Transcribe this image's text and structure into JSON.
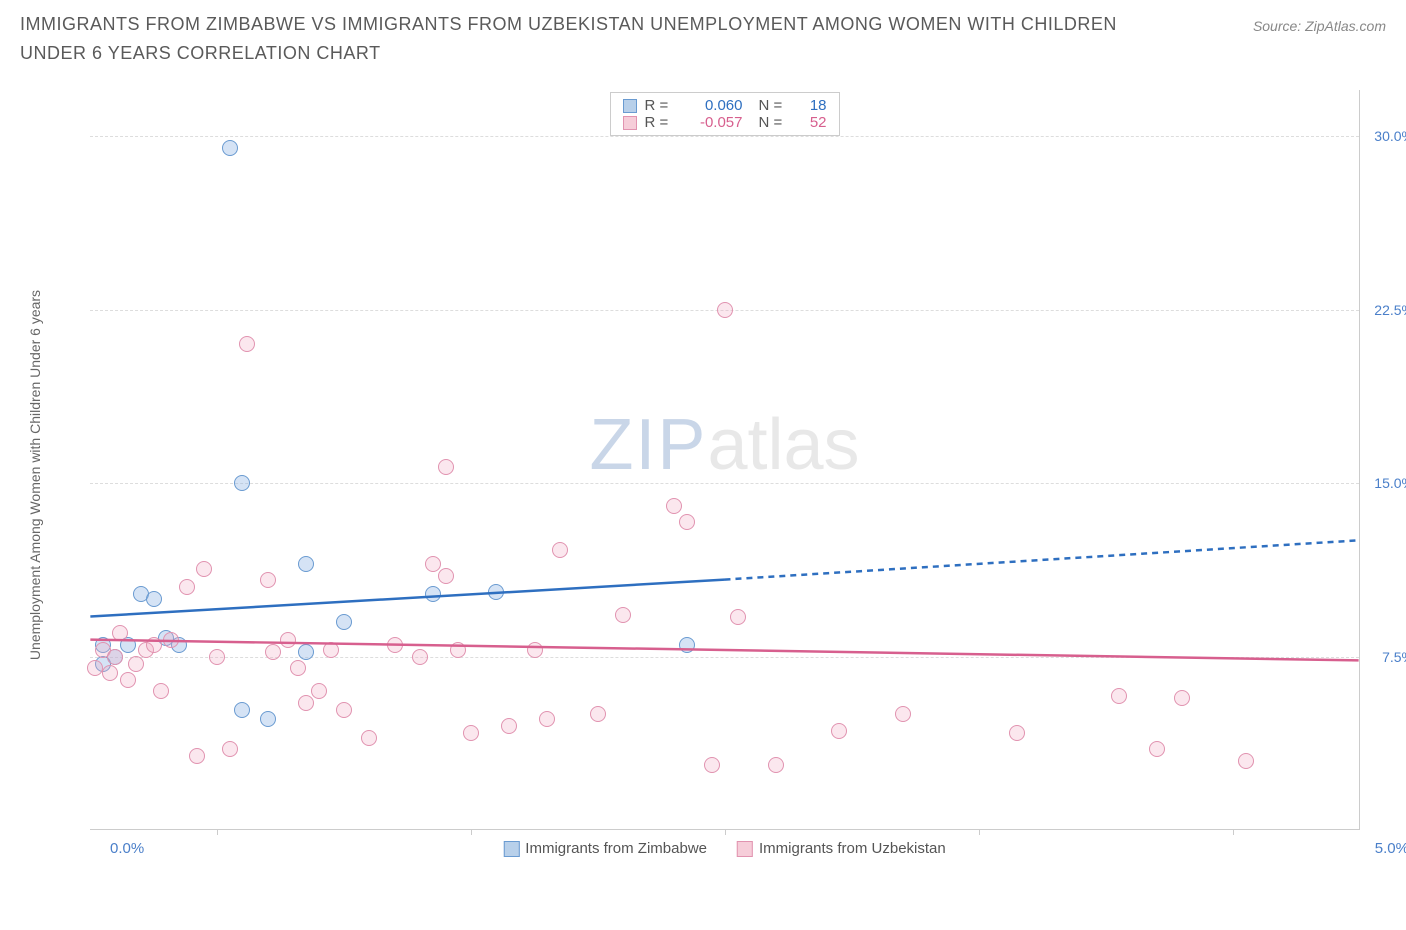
{
  "title": "IMMIGRANTS FROM ZIMBABWE VS IMMIGRANTS FROM UZBEKISTAN UNEMPLOYMENT AMONG WOMEN WITH CHILDREN UNDER 6 YEARS CORRELATION CHART",
  "source": "Source: ZipAtlas.com",
  "y_axis_label": "Unemployment Among Women with Children Under 6 years",
  "x_axis_min_label": "0.0%",
  "x_axis_max_label": "5.0%",
  "chart": {
    "type": "scatter",
    "xlim": [
      0.0,
      5.0
    ],
    "ylim": [
      0.0,
      32.0
    ],
    "y_ticks": [
      7.5,
      15.0,
      22.5,
      30.0
    ],
    "y_tick_labels": [
      "7.5%",
      "15.0%",
      "22.5%",
      "30.0%"
    ],
    "x_ticks": [
      0.5,
      1.5,
      2.5,
      3.5,
      4.5
    ],
    "y_tick_color": "#4a7fc9",
    "grid_color": "#dddddd",
    "background_color": "#ffffff",
    "border_color": "#cccccc",
    "marker_radius": 8,
    "marker_stroke_width": 1.2,
    "line_width": 2.5,
    "dash_pattern": "6,5"
  },
  "series": [
    {
      "name": "Immigrants from Zimbabwe",
      "color_fill": "rgba(135,176,225,0.35)",
      "color_stroke": "#6a9bd1",
      "line_color": "#2e6fc0",
      "swatch_fill": "#b8d0ea",
      "swatch_border": "#6a9bd1",
      "R": "0.060",
      "N": "18",
      "trend": {
        "x1": 0.0,
        "y1": 9.2,
        "x2": 2.5,
        "y2": 10.8,
        "x2_ext": 5.0,
        "y2_ext": 12.5
      },
      "points": [
        {
          "x": 0.05,
          "y": 8.0
        },
        {
          "x": 0.1,
          "y": 7.5
        },
        {
          "x": 0.15,
          "y": 8.0
        },
        {
          "x": 0.2,
          "y": 10.2
        },
        {
          "x": 0.25,
          "y": 10.0
        },
        {
          "x": 0.3,
          "y": 8.3
        },
        {
          "x": 0.35,
          "y": 8.0
        },
        {
          "x": 0.55,
          "y": 29.5
        },
        {
          "x": 0.6,
          "y": 15.0
        },
        {
          "x": 0.6,
          "y": 5.2
        },
        {
          "x": 0.7,
          "y": 4.8
        },
        {
          "x": 0.85,
          "y": 11.5
        },
        {
          "x": 0.85,
          "y": 7.7
        },
        {
          "x": 1.0,
          "y": 9.0
        },
        {
          "x": 1.35,
          "y": 10.2
        },
        {
          "x": 1.6,
          "y": 10.3
        },
        {
          "x": 2.35,
          "y": 8.0
        },
        {
          "x": 0.05,
          "y": 7.2
        }
      ]
    },
    {
      "name": "Immigrants from Uzbekistan",
      "color_fill": "rgba(240,170,195,0.28)",
      "color_stroke": "#e193b0",
      "line_color": "#d75f8e",
      "swatch_fill": "#f6cdd9",
      "swatch_border": "#e193b0",
      "R": "-0.057",
      "N": "52",
      "trend": {
        "x1": 0.0,
        "y1": 8.2,
        "x2": 5.0,
        "y2": 7.3,
        "x2_ext": 5.0,
        "y2_ext": 7.3
      },
      "points": [
        {
          "x": 0.02,
          "y": 7.0
        },
        {
          "x": 0.05,
          "y": 7.8
        },
        {
          "x": 0.08,
          "y": 6.8
        },
        {
          "x": 0.1,
          "y": 7.5
        },
        {
          "x": 0.12,
          "y": 8.5
        },
        {
          "x": 0.15,
          "y": 6.5
        },
        {
          "x": 0.18,
          "y": 7.2
        },
        {
          "x": 0.22,
          "y": 7.8
        },
        {
          "x": 0.25,
          "y": 8.0
        },
        {
          "x": 0.28,
          "y": 6.0
        },
        {
          "x": 0.32,
          "y": 8.2
        },
        {
          "x": 0.38,
          "y": 10.5
        },
        {
          "x": 0.42,
          "y": 3.2
        },
        {
          "x": 0.45,
          "y": 11.3
        },
        {
          "x": 0.5,
          "y": 7.5
        },
        {
          "x": 0.55,
          "y": 3.5
        },
        {
          "x": 0.62,
          "y": 21.0
        },
        {
          "x": 0.7,
          "y": 10.8
        },
        {
          "x": 0.72,
          "y": 7.7
        },
        {
          "x": 0.78,
          "y": 8.2
        },
        {
          "x": 0.82,
          "y": 7.0
        },
        {
          "x": 0.85,
          "y": 5.5
        },
        {
          "x": 0.9,
          "y": 6.0
        },
        {
          "x": 0.95,
          "y": 7.8
        },
        {
          "x": 1.0,
          "y": 5.2
        },
        {
          "x": 1.1,
          "y": 4.0
        },
        {
          "x": 1.2,
          "y": 8.0
        },
        {
          "x": 1.3,
          "y": 7.5
        },
        {
          "x": 1.35,
          "y": 11.5
        },
        {
          "x": 1.4,
          "y": 11.0
        },
        {
          "x": 1.4,
          "y": 15.7
        },
        {
          "x": 1.45,
          "y": 7.8
        },
        {
          "x": 1.5,
          "y": 4.2
        },
        {
          "x": 1.65,
          "y": 4.5
        },
        {
          "x": 1.75,
          "y": 7.8
        },
        {
          "x": 1.8,
          "y": 4.8
        },
        {
          "x": 1.85,
          "y": 12.1
        },
        {
          "x": 2.0,
          "y": 5.0
        },
        {
          "x": 2.1,
          "y": 9.3
        },
        {
          "x": 2.3,
          "y": 14.0
        },
        {
          "x": 2.35,
          "y": 13.3
        },
        {
          "x": 2.45,
          "y": 2.8
        },
        {
          "x": 2.5,
          "y": 22.5
        },
        {
          "x": 2.55,
          "y": 9.2
        },
        {
          "x": 2.7,
          "y": 2.8
        },
        {
          "x": 2.95,
          "y": 4.3
        },
        {
          "x": 3.2,
          "y": 5.0
        },
        {
          "x": 3.65,
          "y": 4.2
        },
        {
          "x": 4.05,
          "y": 5.8
        },
        {
          "x": 4.2,
          "y": 3.5
        },
        {
          "x": 4.3,
          "y": 5.7
        },
        {
          "x": 4.55,
          "y": 3.0
        }
      ]
    }
  ],
  "watermark": {
    "part1": "ZIP",
    "part2": "atlas"
  },
  "bottom_legend_label_1": "Immigrants from Zimbabwe",
  "bottom_legend_label_2": "Immigrants from Uzbekistan"
}
